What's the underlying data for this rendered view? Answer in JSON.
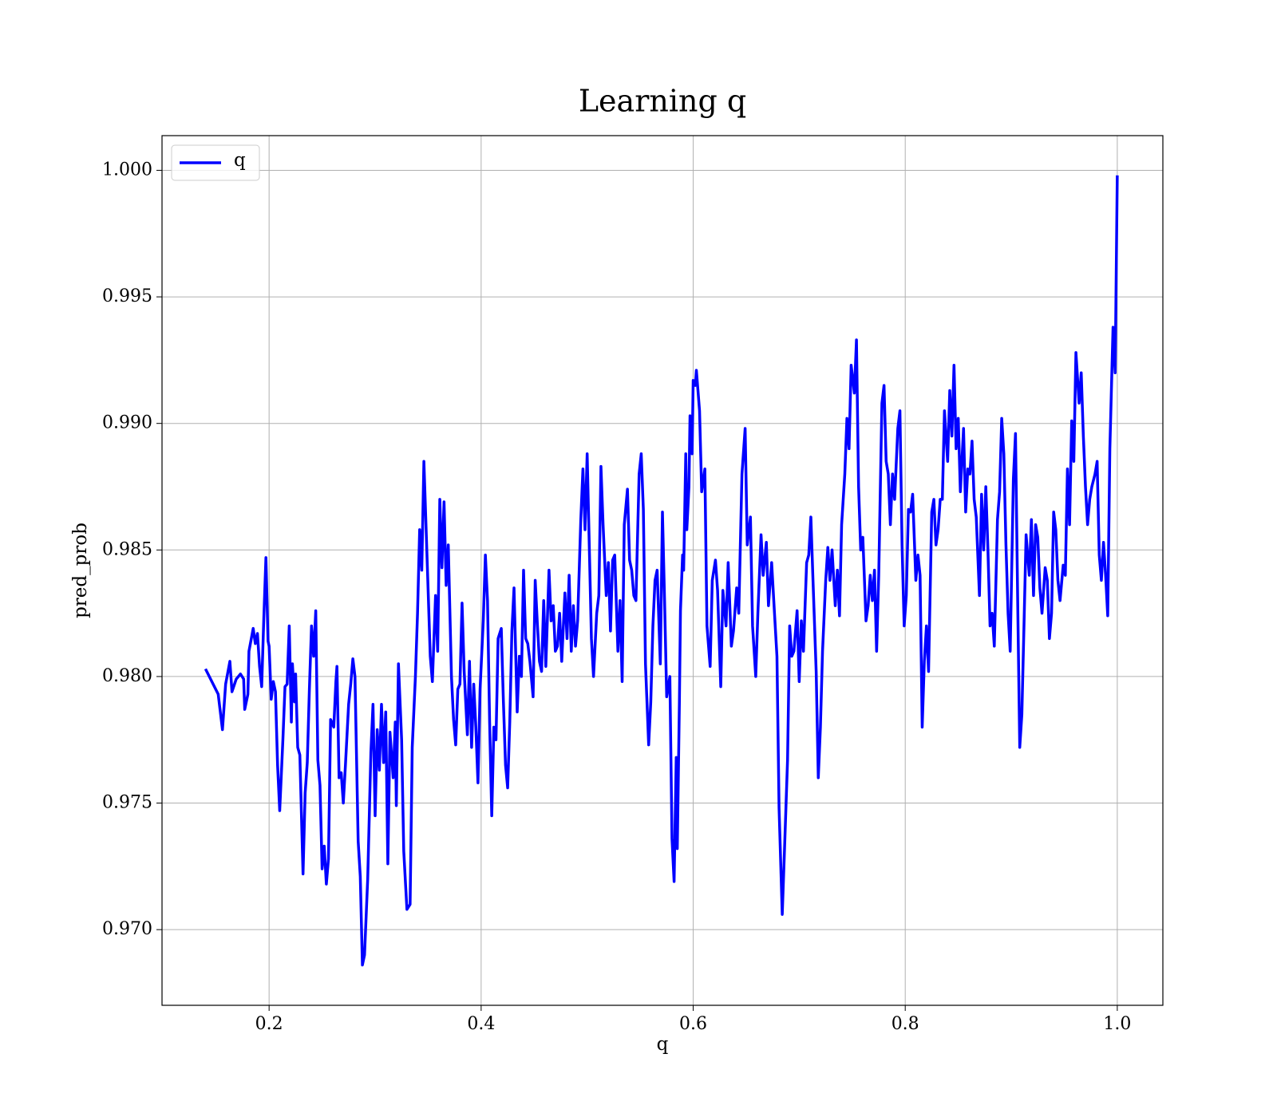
{
  "chart_data": {
    "type": "line",
    "title": "Learning q",
    "xlabel": "q",
    "ylabel": "pred_prob",
    "x": [
      0.14,
      0.152,
      0.156,
      0.159,
      0.163,
      0.165,
      0.169,
      0.173,
      0.176,
      0.177,
      0.18,
      0.181,
      0.185,
      0.187,
      0.189,
      0.191,
      0.193,
      0.195,
      0.197,
      0.199,
      0.2,
      0.202,
      0.204,
      0.206,
      0.208,
      0.21,
      0.213,
      0.215,
      0.217,
      0.219,
      0.221,
      0.222,
      0.224,
      0.225,
      0.227,
      0.229,
      0.232,
      0.234,
      0.236,
      0.238,
      0.24,
      0.242,
      0.244,
      0.246,
      0.248,
      0.25,
      0.252,
      0.254,
      0.256,
      0.258,
      0.261,
      0.263,
      0.264,
      0.266,
      0.268,
      0.27,
      0.272,
      0.275,
      0.277,
      0.279,
      0.281,
      0.284,
      0.286,
      0.288,
      0.29,
      0.293,
      0.296,
      0.298,
      0.3,
      0.302,
      0.304,
      0.306,
      0.308,
      0.31,
      0.312,
      0.314,
      0.317,
      0.319,
      0.32,
      0.322,
      0.325,
      0.327,
      0.33,
      0.333,
      0.335,
      0.338,
      0.34,
      0.342,
      0.344,
      0.346,
      0.35,
      0.352,
      0.354,
      0.357,
      0.359,
      0.361,
      0.363,
      0.365,
      0.367,
      0.369,
      0.372,
      0.374,
      0.376,
      0.378,
      0.38,
      0.382,
      0.384,
      0.387,
      0.389,
      0.391,
      0.393,
      0.395,
      0.397,
      0.399,
      0.402,
      0.404,
      0.406,
      0.408,
      0.41,
      0.412,
      0.414,
      0.416,
      0.419,
      0.421,
      0.423,
      0.425,
      0.427,
      0.429,
      0.431,
      0.434,
      0.436,
      0.438,
      0.44,
      0.442,
      0.444,
      0.446,
      0.449,
      0.451,
      0.453,
      0.455,
      0.457,
      0.459,
      0.461,
      0.464,
      0.466,
      0.468,
      0.47,
      0.472,
      0.474,
      0.476,
      0.479,
      0.481,
      0.483,
      0.485,
      0.487,
      0.489,
      0.491,
      0.494,
      0.496,
      0.498,
      0.5,
      0.504,
      0.506,
      0.509,
      0.511,
      0.513,
      0.515,
      0.518,
      0.52,
      0.522,
      0.524,
      0.526,
      0.529,
      0.531,
      0.533,
      0.535,
      0.538,
      0.54,
      0.542,
      0.544,
      0.546,
      0.549,
      0.551,
      0.553,
      0.555,
      0.558,
      0.56,
      0.562,
      0.564,
      0.566,
      0.569,
      0.571,
      0.573,
      0.575,
      0.578,
      0.58,
      0.582,
      0.584,
      0.585,
      0.587,
      0.588,
      0.59,
      0.591,
      0.593,
      0.594,
      0.596,
      0.597,
      0.599,
      0.6,
      0.602,
      0.603,
      0.606,
      0.608,
      0.611,
      0.613,
      0.616,
      0.618,
      0.621,
      0.623,
      0.626,
      0.628,
      0.631,
      0.633,
      0.636,
      0.638,
      0.641,
      0.643,
      0.646,
      0.649,
      0.651,
      0.654,
      0.656,
      0.659,
      0.661,
      0.664,
      0.666,
      0.669,
      0.671,
      0.674,
      0.676,
      0.679,
      0.681,
      0.684,
      0.686,
      0.689,
      0.691,
      0.693,
      0.695,
      0.698,
      0.7,
      0.702,
      0.704,
      0.707,
      0.709,
      0.711,
      0.713,
      0.716,
      0.718,
      0.72,
      0.722,
      0.725,
      0.727,
      0.729,
      0.731,
      0.734,
      0.736,
      0.738,
      0.74,
      0.743,
      0.745,
      0.747,
      0.749,
      0.752,
      0.754,
      0.756,
      0.758,
      0.76,
      0.763,
      0.765,
      0.767,
      0.769,
      0.771,
      0.773,
      0.775,
      0.778,
      0.78,
      0.782,
      0.784,
      0.786,
      0.788,
      0.79,
      0.793,
      0.795,
      0.797,
      0.799,
      0.801,
      0.803,
      0.805,
      0.807,
      0.81,
      0.812,
      0.814,
      0.816,
      0.818,
      0.82,
      0.822,
      0.825,
      0.827,
      0.829,
      0.831,
      0.833,
      0.835,
      0.837,
      0.84,
      0.842,
      0.844,
      0.846,
      0.848,
      0.85,
      0.852,
      0.855,
      0.857,
      0.859,
      0.861,
      0.863,
      0.865,
      0.867,
      0.87,
      0.872,
      0.874,
      0.876,
      0.878,
      0.88,
      0.882,
      0.884,
      0.887,
      0.889,
      0.891,
      0.893,
      0.895,
      0.897,
      0.899,
      0.902,
      0.904,
      0.906,
      0.908,
      0.91,
      0.912,
      0.914,
      0.917,
      0.919,
      0.921,
      0.923,
      0.925,
      0.927,
      0.929,
      0.932,
      0.934,
      0.936,
      0.938,
      0.94,
      0.942,
      0.944,
      0.946,
      0.949,
      0.951,
      0.953,
      0.955,
      0.957,
      0.959,
      0.961,
      0.964,
      0.966,
      0.968,
      0.97,
      0.972,
      0.974,
      0.976,
      0.979,
      0.981,
      0.983,
      0.985,
      0.987,
      0.989,
      0.991,
      0.993,
      0.996,
      0.998,
      1.0
    ],
    "series": [
      {
        "name": "q",
        "color": "#0000ff",
        "values": [
          0.9803,
          0.9793,
          0.9779,
          0.9797,
          0.9806,
          0.9794,
          0.9799,
          0.9801,
          0.9799,
          0.9787,
          0.9793,
          0.981,
          0.9819,
          0.9813,
          0.9817,
          0.9804,
          0.9796,
          0.9823,
          0.9847,
          0.9814,
          0.9812,
          0.9791,
          0.9798,
          0.9794,
          0.9765,
          0.9747,
          0.9775,
          0.9796,
          0.9797,
          0.982,
          0.9782,
          0.9805,
          0.979,
          0.9801,
          0.9772,
          0.9769,
          0.9722,
          0.9754,
          0.9766,
          0.9795,
          0.982,
          0.9808,
          0.9826,
          0.9767,
          0.9757,
          0.9724,
          0.9733,
          0.9718,
          0.9728,
          0.9783,
          0.978,
          0.9798,
          0.9804,
          0.976,
          0.9762,
          0.975,
          0.9765,
          0.9789,
          0.9797,
          0.9807,
          0.98,
          0.9735,
          0.9721,
          0.9686,
          0.969,
          0.972,
          0.977,
          0.9789,
          0.9745,
          0.9779,
          0.9763,
          0.9789,
          0.9766,
          0.9786,
          0.9726,
          0.9778,
          0.976,
          0.9782,
          0.9749,
          0.9805,
          0.9775,
          0.9731,
          0.9708,
          0.971,
          0.9772,
          0.98,
          0.9825,
          0.9858,
          0.9842,
          0.9885,
          0.9834,
          0.9808,
          0.9798,
          0.9832,
          0.981,
          0.987,
          0.9843,
          0.9869,
          0.9836,
          0.9852,
          0.98,
          0.9783,
          0.9773,
          0.9795,
          0.9797,
          0.9829,
          0.9802,
          0.9777,
          0.9806,
          0.9772,
          0.9797,
          0.978,
          0.9758,
          0.9795,
          0.9822,
          0.9848,
          0.983,
          0.9782,
          0.9745,
          0.978,
          0.9775,
          0.9815,
          0.9819,
          0.979,
          0.9765,
          0.9756,
          0.9782,
          0.9818,
          0.9835,
          0.9786,
          0.9808,
          0.98,
          0.9842,
          0.9815,
          0.9813,
          0.9806,
          0.9792,
          0.9838,
          0.9821,
          0.9806,
          0.9802,
          0.983,
          0.9804,
          0.9842,
          0.9822,
          0.9828,
          0.981,
          0.9812,
          0.9825,
          0.9806,
          0.9833,
          0.9815,
          0.984,
          0.981,
          0.9828,
          0.9812,
          0.9822,
          0.9862,
          0.9882,
          0.9858,
          0.9888,
          0.9815,
          0.98,
          0.9825,
          0.9832,
          0.9883,
          0.986,
          0.9832,
          0.9845,
          0.9818,
          0.9846,
          0.9848,
          0.981,
          0.983,
          0.9798,
          0.986,
          0.9874,
          0.9846,
          0.9842,
          0.9832,
          0.983,
          0.988,
          0.9888,
          0.9866,
          0.9805,
          0.9773,
          0.979,
          0.982,
          0.9838,
          0.9842,
          0.9805,
          0.9865,
          0.983,
          0.9792,
          0.98,
          0.9736,
          0.9719,
          0.9768,
          0.9732,
          0.979,
          0.9826,
          0.9848,
          0.9842,
          0.9888,
          0.9858,
          0.9875,
          0.9903,
          0.9888,
          0.9917,
          0.9915,
          0.9921,
          0.9905,
          0.9873,
          0.9882,
          0.982,
          0.9804,
          0.9838,
          0.9846,
          0.9834,
          0.9796,
          0.9834,
          0.982,
          0.9845,
          0.9812,
          0.9818,
          0.9835,
          0.9825,
          0.988,
          0.9898,
          0.9852,
          0.9863,
          0.982,
          0.98,
          0.9825,
          0.9856,
          0.984,
          0.9853,
          0.9828,
          0.9845,
          0.983,
          0.9808,
          0.9748,
          0.9706,
          0.973,
          0.9767,
          0.982,
          0.9808,
          0.981,
          0.9826,
          0.9798,
          0.9822,
          0.981,
          0.9845,
          0.9848,
          0.9863,
          0.9838,
          0.9802,
          0.976,
          0.978,
          0.981,
          0.9838,
          0.9851,
          0.9838,
          0.985,
          0.9828,
          0.9842,
          0.9824,
          0.986,
          0.988,
          0.9902,
          0.989,
          0.9923,
          0.9912,
          0.9933,
          0.9875,
          0.985,
          0.9855,
          0.9822,
          0.9828,
          0.984,
          0.983,
          0.9842,
          0.981,
          0.984,
          0.9908,
          0.9915,
          0.9885,
          0.988,
          0.986,
          0.988,
          0.987,
          0.9898,
          0.9905,
          0.9852,
          0.982,
          0.9832,
          0.9866,
          0.9865,
          0.9872,
          0.9838,
          0.9848,
          0.984,
          0.978,
          0.9806,
          0.982,
          0.9802,
          0.9865,
          0.987,
          0.9852,
          0.9858,
          0.987,
          0.987,
          0.9905,
          0.9885,
          0.9913,
          0.9895,
          0.9923,
          0.989,
          0.9902,
          0.9873,
          0.9898,
          0.9865,
          0.9882,
          0.988,
          0.9893,
          0.987,
          0.9863,
          0.9832,
          0.9872,
          0.985,
          0.9875,
          0.985,
          0.982,
          0.9825,
          0.9812,
          0.9862,
          0.9873,
          0.9902,
          0.9888,
          0.9852,
          0.9825,
          0.981,
          0.9878,
          0.9896,
          0.9832,
          0.9772,
          0.9785,
          0.982,
          0.9856,
          0.984,
          0.9862,
          0.9832,
          0.986,
          0.9855,
          0.9835,
          0.9825,
          0.9843,
          0.9838,
          0.9815,
          0.9825,
          0.9865,
          0.9858,
          0.9838,
          0.983,
          0.9844,
          0.984,
          0.9882,
          0.986,
          0.9901,
          0.9885,
          0.9928,
          0.9908,
          0.992,
          0.9895,
          0.9875,
          0.986,
          0.987,
          0.9875,
          0.988,
          0.9885,
          0.9848,
          0.9838,
          0.9853,
          0.984,
          0.9824,
          0.989,
          0.9938,
          0.992,
          0.9998
        ]
      }
    ],
    "xlim": [
      0.099,
      1.043
    ],
    "ylim": [
      0.96701,
      1.00137
    ],
    "xticks": [
      0.2,
      0.4,
      0.6,
      0.8,
      {
        "value": 1.0,
        "label": "1.0"
      }
    ],
    "yticks": [
      {
        "value": 0.97,
        "label": "0.970"
      },
      {
        "value": 0.975,
        "label": "0.975"
      },
      {
        "value": 0.98,
        "label": "0.980"
      },
      {
        "value": 0.985,
        "label": "0.985"
      },
      {
        "value": 0.99,
        "label": "0.990"
      },
      {
        "value": 0.995,
        "label": "0.995"
      },
      {
        "value": 1.0,
        "label": "1.000"
      }
    ],
    "grid": true,
    "legend": "upper-left"
  }
}
